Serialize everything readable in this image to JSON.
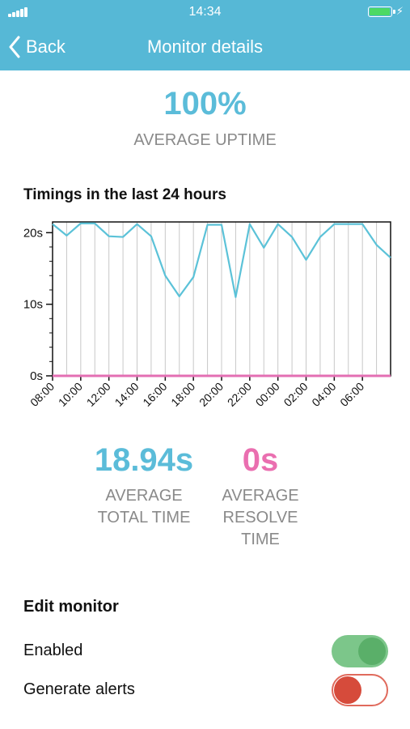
{
  "status_bar": {
    "time": "14:34"
  },
  "nav": {
    "back_label": "Back",
    "title": "Monitor details"
  },
  "uptime": {
    "value": "100%",
    "label": "AVERAGE UPTIME"
  },
  "chart_title": "Timings in the last 24 hours",
  "chart_data": {
    "type": "line",
    "x_tick_labels": [
      "08:00",
      "10:00",
      "12:00",
      "14:00",
      "16:00",
      "18:00",
      "20:00",
      "22:00",
      "00:00",
      "02:00",
      "04:00",
      "06:00"
    ],
    "y_tick_labels": [
      "0s",
      "10s",
      "20s"
    ],
    "ylim": [
      0,
      21.5
    ],
    "grid": true,
    "series": [
      {
        "color": "#5bc2d8",
        "x_hours": [
          0,
          1,
          2,
          3,
          4,
          5,
          6,
          7,
          8,
          9,
          10,
          11,
          12,
          13,
          14,
          15,
          16,
          17,
          18,
          19,
          20,
          21,
          22,
          23,
          24
        ],
        "values": [
          21.2,
          19.6,
          21.3,
          21.3,
          19.5,
          19.4,
          21.2,
          19.5,
          14.0,
          11.1,
          13.8,
          21.1,
          21.1,
          11.0,
          21.2,
          17.9,
          21.2,
          19.4,
          16.2,
          19.4,
          21.2,
          21.2,
          21.2,
          18.3,
          16.5
        ]
      },
      {
        "color": "#e36fb3",
        "x_hours": [
          0,
          24
        ],
        "values": [
          0,
          0
        ]
      }
    ]
  },
  "stats": {
    "total": {
      "value": "18.94s",
      "label": "AVERAGE\nTOTAL TIME"
    },
    "resolve": {
      "value": "0s",
      "label": "AVERAGE\nRESOLVE\nTIME"
    }
  },
  "edit": {
    "title": "Edit monitor",
    "enabled_label": "Enabled",
    "enabled_on": true,
    "alerts_label": "Generate alerts",
    "alerts_on": false
  }
}
